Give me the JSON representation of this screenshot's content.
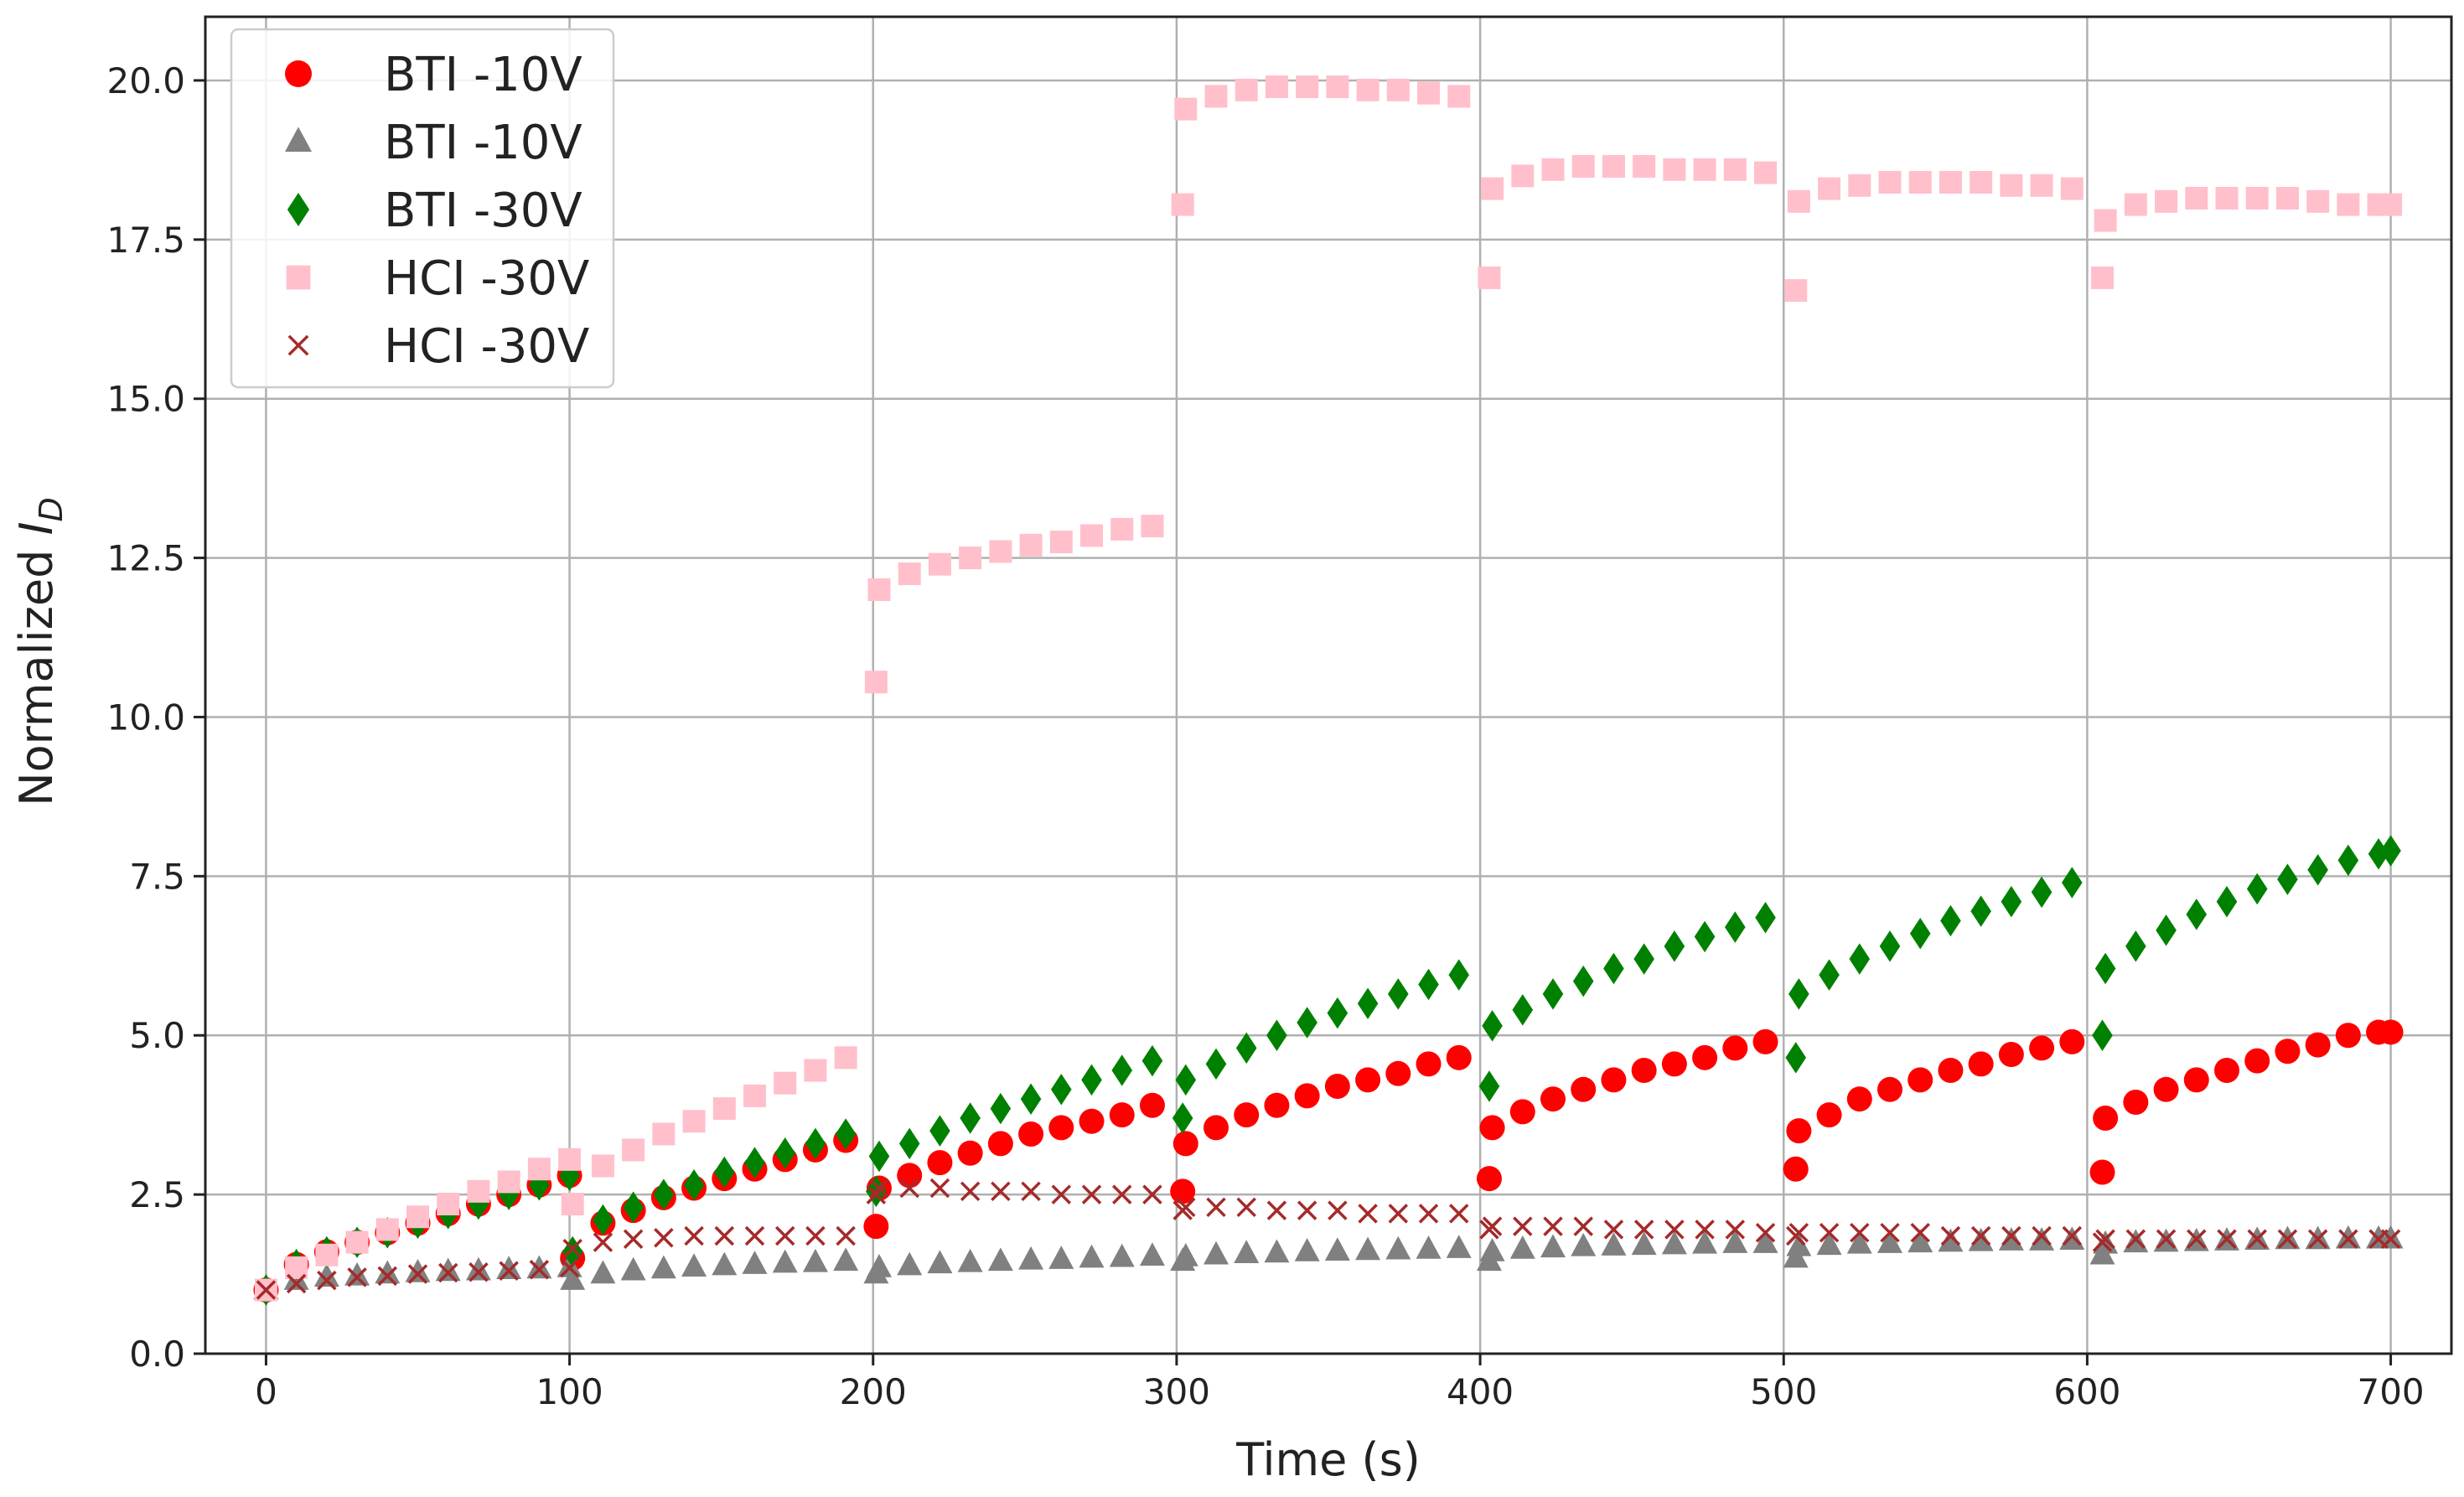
{
  "chart_data": {
    "type": "scatter",
    "title": "",
    "xlabel": "Time (s)",
    "ylabel_main": "Normalized ",
    "ylabel_var": "I",
    "ylabel_sub": "D",
    "xlim": [
      -20,
      720
    ],
    "ylim": [
      0,
      21
    ],
    "grid": true,
    "legend_position": "upper-left",
    "x_ticks": [
      0,
      100,
      200,
      300,
      400,
      500,
      600,
      700
    ],
    "x_tick_labels": [
      "0",
      "100",
      "200",
      "300",
      "400",
      "500",
      "600",
      "700"
    ],
    "y_ticks": [
      0,
      2.5,
      5,
      7.5,
      10,
      12.5,
      15,
      17.5,
      20
    ],
    "y_tick_labels": [
      "0.0",
      "2.5",
      "5.0",
      "7.5",
      "10.0",
      "12.5",
      "15.0",
      "17.5",
      "20.0"
    ],
    "x": [
      0,
      10,
      20,
      30,
      40,
      50,
      60,
      70,
      80,
      90,
      100,
      101,
      111,
      121,
      131,
      141,
      151,
      161,
      171,
      181,
      191,
      201,
      202,
      212,
      222,
      232,
      242,
      252,
      262,
      272,
      282,
      292,
      302,
      303,
      313,
      323,
      333,
      343,
      353,
      363,
      373,
      383,
      393,
      403,
      404,
      414,
      424,
      434,
      444,
      454,
      464,
      474,
      484,
      494,
      504,
      505,
      515,
      525,
      535,
      545,
      555,
      565,
      575,
      585,
      595,
      605,
      606,
      616,
      626,
      636,
      646,
      656,
      666,
      676,
      686,
      696,
      700
    ],
    "series": [
      {
        "name": "BTI -10V",
        "color": "#ff0000",
        "marker": "circle",
        "values": [
          1.0,
          1.4,
          1.6,
          1.75,
          1.9,
          2.05,
          2.2,
          2.35,
          2.5,
          2.65,
          2.8,
          1.5,
          2.05,
          2.25,
          2.45,
          2.6,
          2.75,
          2.9,
          3.05,
          3.2,
          3.35,
          2.0,
          2.6,
          2.8,
          3.0,
          3.15,
          3.3,
          3.45,
          3.55,
          3.65,
          3.75,
          3.9,
          2.55,
          3.3,
          3.55,
          3.75,
          3.9,
          4.05,
          4.2,
          4.3,
          4.4,
          4.55,
          4.65,
          2.75,
          3.55,
          3.8,
          4.0,
          4.15,
          4.3,
          4.45,
          4.55,
          4.65,
          4.8,
          4.9,
          2.9,
          3.5,
          3.75,
          4.0,
          4.15,
          4.3,
          4.45,
          4.55,
          4.7,
          4.8,
          4.9,
          2.85,
          3.7,
          3.95,
          4.15,
          4.3,
          4.45,
          4.6,
          4.75,
          4.85,
          5.0,
          5.05,
          5.05
        ]
      },
      {
        "name": "BTI -10V",
        "color": "#808080",
        "marker": "triangle",
        "values": [
          1.0,
          1.15,
          1.2,
          1.22,
          1.25,
          1.27,
          1.29,
          1.3,
          1.32,
          1.33,
          1.35,
          1.15,
          1.25,
          1.3,
          1.33,
          1.36,
          1.38,
          1.4,
          1.42,
          1.43,
          1.45,
          1.25,
          1.35,
          1.38,
          1.41,
          1.43,
          1.45,
          1.47,
          1.48,
          1.5,
          1.51,
          1.53,
          1.45,
          1.52,
          1.55,
          1.57,
          1.58,
          1.6,
          1.61,
          1.62,
          1.63,
          1.64,
          1.65,
          1.45,
          1.6,
          1.64,
          1.66,
          1.68,
          1.69,
          1.7,
          1.71,
          1.72,
          1.73,
          1.73,
          1.5,
          1.68,
          1.7,
          1.72,
          1.73,
          1.74,
          1.75,
          1.76,
          1.77,
          1.77,
          1.78,
          1.55,
          1.72,
          1.74,
          1.75,
          1.76,
          1.77,
          1.78,
          1.79,
          1.79,
          1.8,
          1.8,
          1.8
        ]
      },
      {
        "name": "BTI -30V",
        "color": "#008000",
        "marker": "diamond",
        "values": [
          1.0,
          1.4,
          1.6,
          1.75,
          1.9,
          2.05,
          2.2,
          2.35,
          2.5,
          2.65,
          2.8,
          1.6,
          2.1,
          2.3,
          2.5,
          2.65,
          2.85,
          3.0,
          3.15,
          3.3,
          3.45,
          2.55,
          3.1,
          3.3,
          3.5,
          3.7,
          3.85,
          4.0,
          4.15,
          4.3,
          4.45,
          4.6,
          3.7,
          4.3,
          4.55,
          4.8,
          5.0,
          5.2,
          5.35,
          5.5,
          5.65,
          5.8,
          5.95,
          4.2,
          5.15,
          5.4,
          5.65,
          5.85,
          6.05,
          6.2,
          6.4,
          6.55,
          6.7,
          6.85,
          4.65,
          5.65,
          5.95,
          6.2,
          6.4,
          6.6,
          6.8,
          6.95,
          7.1,
          7.25,
          7.4,
          5.0,
          6.05,
          6.4,
          6.65,
          6.9,
          7.1,
          7.3,
          7.45,
          7.6,
          7.75,
          7.85,
          7.9
        ]
      },
      {
        "name": "HCI -30V",
        "color": "#ffc0cb",
        "marker": "square",
        "values": [
          1.0,
          1.35,
          1.55,
          1.75,
          1.95,
          2.15,
          2.35,
          2.55,
          2.7,
          2.9,
          3.05,
          2.35,
          2.95,
          3.2,
          3.45,
          3.65,
          3.85,
          4.05,
          4.25,
          4.45,
          4.65,
          10.55,
          12.0,
          12.25,
          12.4,
          12.5,
          12.6,
          12.7,
          12.75,
          12.85,
          12.95,
          13.0,
          18.05,
          19.55,
          19.75,
          19.85,
          19.9,
          19.9,
          19.9,
          19.85,
          19.85,
          19.8,
          19.75,
          16.9,
          18.3,
          18.5,
          18.6,
          18.65,
          18.65,
          18.65,
          18.6,
          18.6,
          18.6,
          18.55,
          16.7,
          18.1,
          18.3,
          18.35,
          18.4,
          18.4,
          18.4,
          18.4,
          18.35,
          18.35,
          18.3,
          16.9,
          17.8,
          18.05,
          18.1,
          18.15,
          18.15,
          18.15,
          18.15,
          18.1,
          18.05,
          18.05,
          18.05
        ]
      },
      {
        "name": "HCI -30V",
        "color": "#a52a2a",
        "marker": "x",
        "values": [
          1.0,
          1.1,
          1.15,
          1.2,
          1.22,
          1.25,
          1.27,
          1.28,
          1.3,
          1.32,
          1.35,
          1.65,
          1.75,
          1.8,
          1.82,
          1.85,
          1.85,
          1.85,
          1.85,
          1.85,
          1.85,
          2.5,
          2.6,
          2.6,
          2.6,
          2.55,
          2.55,
          2.55,
          2.5,
          2.5,
          2.5,
          2.5,
          2.25,
          2.3,
          2.3,
          2.3,
          2.25,
          2.25,
          2.25,
          2.2,
          2.2,
          2.2,
          2.2,
          1.95,
          2.0,
          2.0,
          2.0,
          2.0,
          1.95,
          1.95,
          1.95,
          1.95,
          1.95,
          1.9,
          1.85,
          1.9,
          1.9,
          1.9,
          1.9,
          1.9,
          1.85,
          1.85,
          1.85,
          1.85,
          1.85,
          1.75,
          1.8,
          1.8,
          1.8,
          1.8,
          1.8,
          1.8,
          1.8,
          1.8,
          1.8,
          1.8,
          1.8
        ]
      }
    ]
  }
}
